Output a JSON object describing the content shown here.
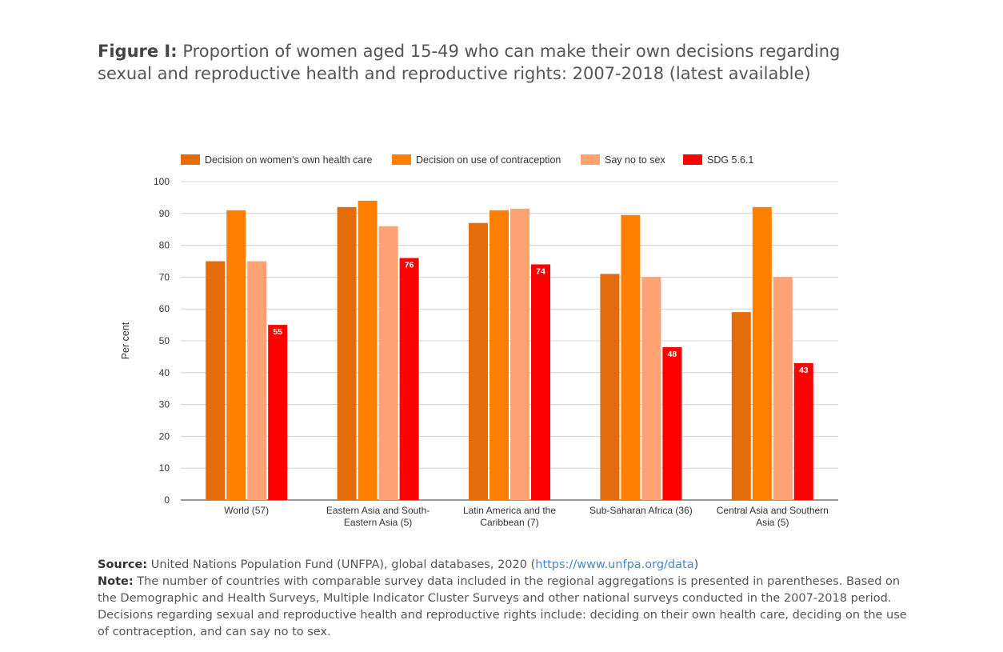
{
  "figure": {
    "label": "Figure I:",
    "title": "Proportion of women aged 15-49 who can make their own decisions regarding sexual and reproductive health and reproductive rights: 2007-2018 (latest available)"
  },
  "footer": {
    "source_label": "Source:",
    "source_text": "United Nations Population Fund (UNFPA), global databases, 2020 (",
    "source_link": "https://www.unfpa.org/data",
    "source_close": ")",
    "note_label": "Note:",
    "note_text": "The number of countries with comparable survey data included in the regional aggregations is presented in parentheses. Based on the Demographic and Health Surveys, Multiple Indicator Cluster Surveys and other national surveys conducted in the 2007-2018 period. Decisions regarding sexual and reproductive health and reproductive rights include: deciding on their own health care, deciding on the use of contraception, and can say no to sex."
  },
  "chart_data": {
    "type": "bar",
    "title": "",
    "xlabel": "",
    "ylabel": "Per cent",
    "ylim": [
      0,
      100
    ],
    "yticks": [
      0,
      10,
      20,
      30,
      40,
      50,
      60,
      70,
      80,
      90,
      100
    ],
    "grid": true,
    "legend_position": "top",
    "categories": [
      [
        "World (57)"
      ],
      [
        "Eastern Asia and South-",
        "Eastern Asia (5)"
      ],
      [
        "Latin America and the",
        "Caribbean (7)"
      ],
      [
        "Sub-Saharan Africa (36)"
      ],
      [
        "Central Asia and Southern",
        "Asia (5)"
      ]
    ],
    "series": [
      {
        "name": "Decision on women's own health care",
        "color": "#E46C0A",
        "values": [
          75,
          92,
          87,
          71,
          59
        ]
      },
      {
        "name": "Decision on use of contraception",
        "color": "#FF8000",
        "values": [
          91,
          94,
          91,
          89.5,
          92
        ]
      },
      {
        "name": "Say no to sex",
        "color": "#FFA375",
        "values": [
          75,
          86,
          91.5,
          70,
          70
        ]
      },
      {
        "name": "SDG 5.6.1",
        "color": "#FF0000",
        "values": [
          55,
          76,
          74,
          48,
          43
        ],
        "data_labels": true
      }
    ]
  }
}
